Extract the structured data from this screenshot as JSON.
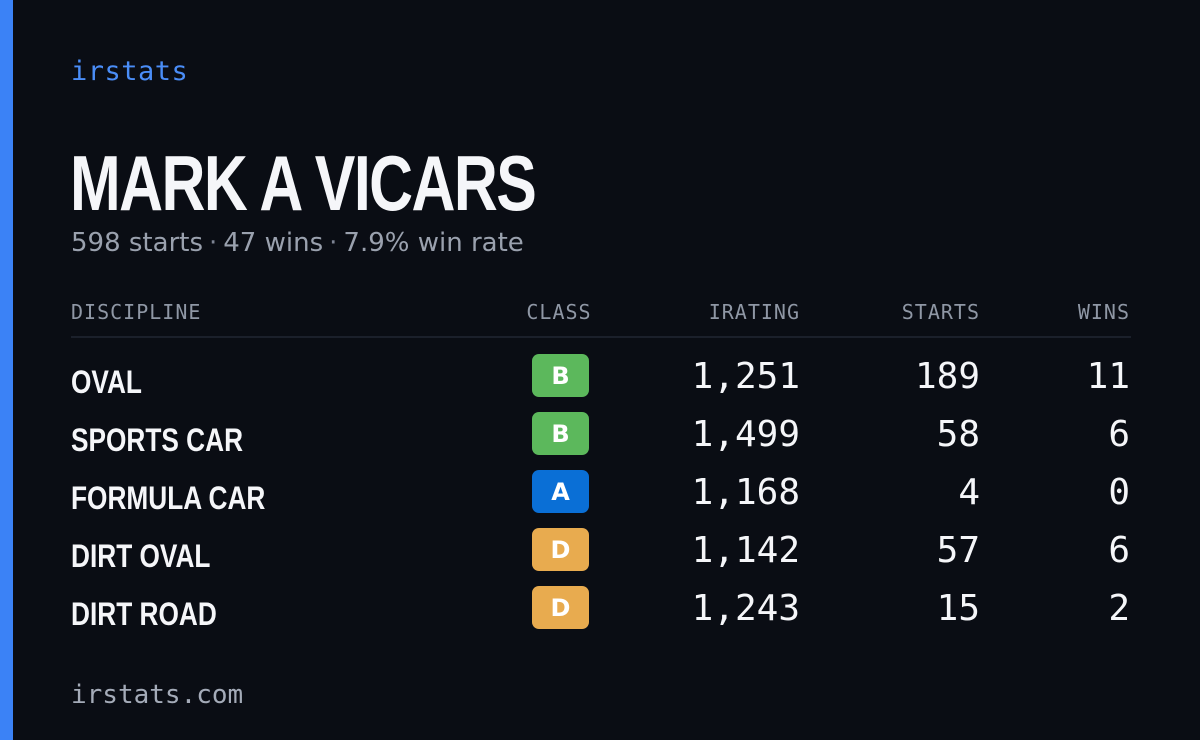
{
  "brand": "irstats",
  "player": {
    "name": "MARK A VICARS",
    "starts_text": "598 starts",
    "wins_text": "47 wins",
    "win_rate_text": "7.9% win rate",
    "separator": "·"
  },
  "table": {
    "headers": {
      "discipline": "DISCIPLINE",
      "class": "CLASS",
      "irating": "IRATING",
      "starts": "STARTS",
      "wins": "WINS"
    },
    "rows": [
      {
        "discipline": "OVAL",
        "class": "B",
        "class_color": "#5cb85c",
        "irating": "1,251",
        "starts": "189",
        "wins": "11"
      },
      {
        "discipline": "SPORTS CAR",
        "class": "B",
        "class_color": "#5cb85c",
        "irating": "1,499",
        "starts": "58",
        "wins": "6"
      },
      {
        "discipline": "FORMULA CAR",
        "class": "A",
        "class_color": "#0a6fd6",
        "irating": "1,168",
        "starts": "4",
        "wins": "0"
      },
      {
        "discipline": "DIRT OVAL",
        "class": "D",
        "class_color": "#e8ab4f",
        "irating": "1,142",
        "starts": "57",
        "wins": "6"
      },
      {
        "discipline": "DIRT ROAD",
        "class": "D",
        "class_color": "#e8ab4f",
        "irating": "1,243",
        "starts": "15",
        "wins": "2"
      }
    ]
  },
  "footer": {
    "url": "irstats.com"
  },
  "colors": {
    "accent": "#3b82f6",
    "background": "#0a0d14"
  }
}
